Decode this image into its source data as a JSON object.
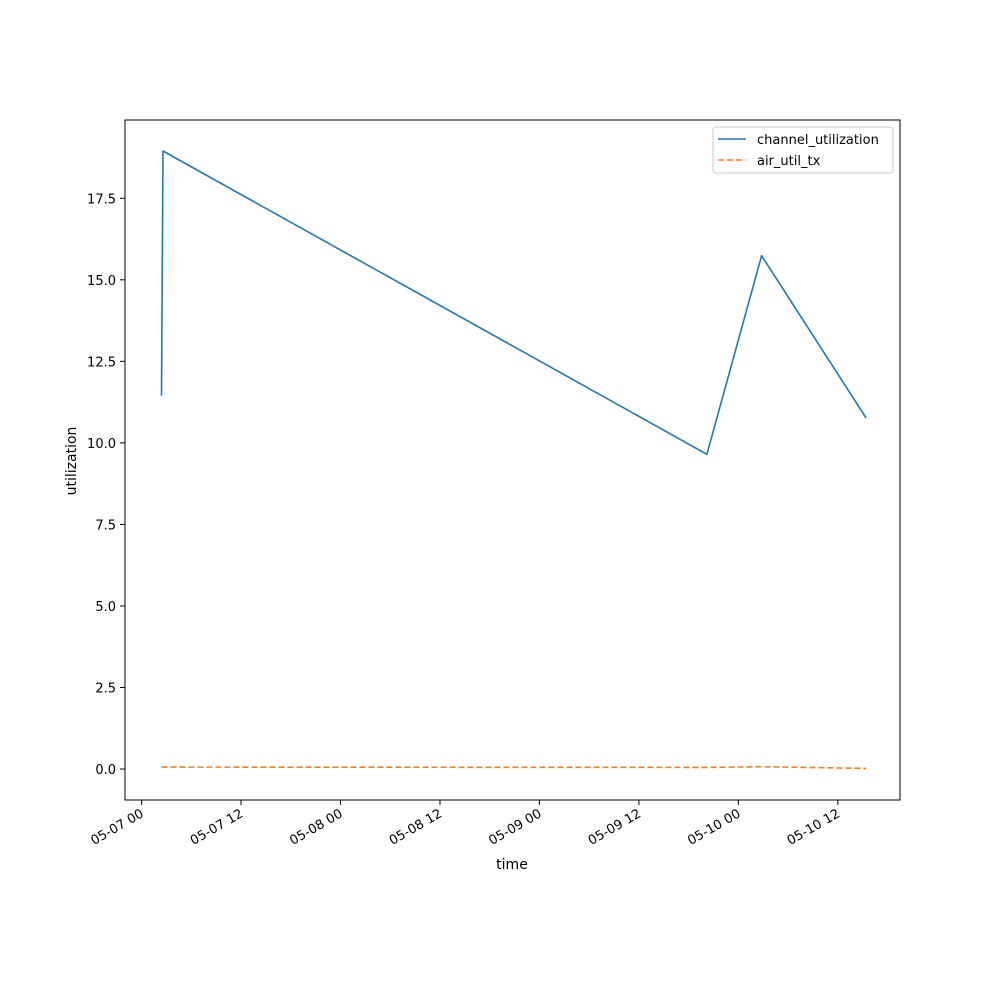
{
  "chart_data": {
    "type": "line",
    "xlabel": "time",
    "ylabel": "utilization",
    "x_tick_labels": [
      "05-07 00",
      "05-07 12",
      "05-08 00",
      "05-08 12",
      "05-09 00",
      "05-09 12",
      "05-10 00",
      "05-10 12"
    ],
    "y_tick_labels": [
      "0.0",
      "2.5",
      "5.0",
      "7.5",
      "10.0",
      "12.5",
      "15.0",
      "17.5"
    ],
    "x_range": [
      "2023-05-06T22:00",
      "2023-05-10T19:30"
    ],
    "ylim": [
      -0.95,
      19.9
    ],
    "grid": false,
    "legend_position": "top-right",
    "series": [
      {
        "name": "channel_utilization",
        "color": "#1f77b4",
        "style": "solid",
        "points": [
          {
            "x": "2023-05-07T02:24",
            "y": 11.45
          },
          {
            "x": "2023-05-07T02:35",
            "y": 18.95
          },
          {
            "x": "2023-05-09T20:12",
            "y": 9.65
          },
          {
            "x": "2023-05-10T02:48",
            "y": 15.74
          },
          {
            "x": "2023-05-10T15:24",
            "y": 10.77
          }
        ]
      },
      {
        "name": "air_util_tx",
        "color": "#ff7f0e",
        "style": "dashed",
        "points": [
          {
            "x": "2023-05-07T02:24",
            "y": 0.05
          },
          {
            "x": "2023-05-07T02:35",
            "y": 0.06
          },
          {
            "x": "2023-05-09T20:12",
            "y": 0.05
          },
          {
            "x": "2023-05-10T02:48",
            "y": 0.07
          },
          {
            "x": "2023-05-10T15:24",
            "y": 0.02
          }
        ]
      }
    ]
  }
}
